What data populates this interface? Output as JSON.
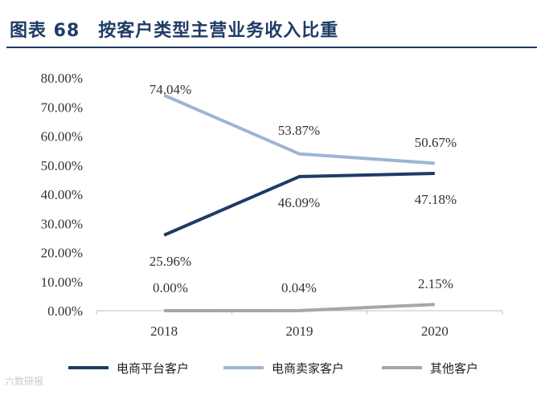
{
  "header": {
    "title": "图表 68　按客户类型主营业务收入比重"
  },
  "watermark": "六数研报",
  "chart_data": {
    "type": "line",
    "categories": [
      "2018",
      "2019",
      "2020"
    ],
    "ylim": [
      0,
      80
    ],
    "ytick_labels": [
      "0.00%",
      "10.00%",
      "20.00%",
      "30.00%",
      "40.00%",
      "50.00%",
      "60.00%",
      "70.00%",
      "80.00%"
    ],
    "legend_position": "bottom",
    "series": [
      {
        "name": "电商平台客户",
        "color": "#1f3b66",
        "values": [
          25.96,
          46.09,
          47.18
        ],
        "labels": [
          "25.96%",
          "46.09%",
          "47.18%"
        ]
      },
      {
        "name": "电商卖家客户",
        "color": "#9db5d3",
        "values": [
          74.04,
          53.87,
          50.67
        ],
        "labels": [
          "74.04%",
          "53.87%",
          "50.67%"
        ]
      },
      {
        "name": "其他客户",
        "color": "#a6a6a6",
        "values": [
          0.0,
          0.04,
          2.15
        ],
        "labels": [
          "0.00%",
          "0.04%",
          "2.15%"
        ]
      }
    ]
  }
}
